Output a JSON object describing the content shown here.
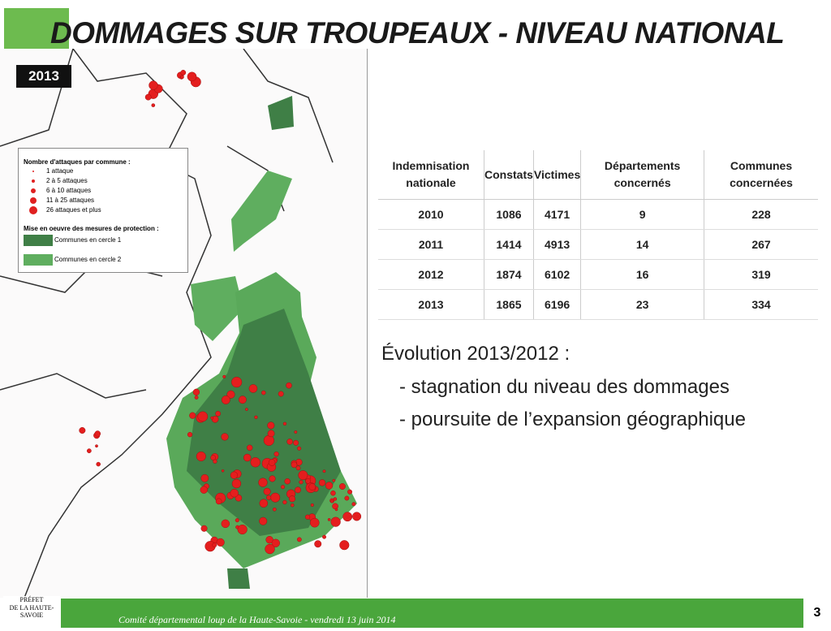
{
  "header": {
    "title": "DOMMAGES SUR TROUPEAUX - NIVEAU NATIONAL",
    "year": "2013"
  },
  "legend": {
    "title": "Nombre d'attaques par commune :",
    "sizes": [
      "1 attaque",
      "2 à 5 attaques",
      "6 à 10 attaques",
      "11 à 25 attaques",
      "26 attaques et plus"
    ],
    "protection_title": "Mise en oeuvre des mesures de protection :",
    "protection": [
      "Communes en cercle 1",
      "Communes en cercle 2"
    ]
  },
  "table": {
    "headers": [
      "Indemnisation nationale",
      "Constats",
      "Victimes",
      "Départements concernés",
      "Communes concernées"
    ],
    "rows": [
      [
        "2010",
        1086,
        4171,
        9,
        228
      ],
      [
        "2011",
        1414,
        4913,
        14,
        267
      ],
      [
        "2012",
        1874,
        6102,
        16,
        319
      ],
      [
        "2013",
        1865,
        6196,
        23,
        334
      ]
    ]
  },
  "evolution": {
    "title": "Évolution 2013/2012 :",
    "points": [
      "- stagnation du niveau des dommages",
      "- poursuite de l’expansion géographique"
    ]
  },
  "footer": {
    "prefet": [
      "PRÉFET",
      "DE LA HAUTE-SAVOIE"
    ],
    "event": "Comité départemental loup de la Haute-Savoie - vendredi 13 juin 2014",
    "page": "3"
  }
}
